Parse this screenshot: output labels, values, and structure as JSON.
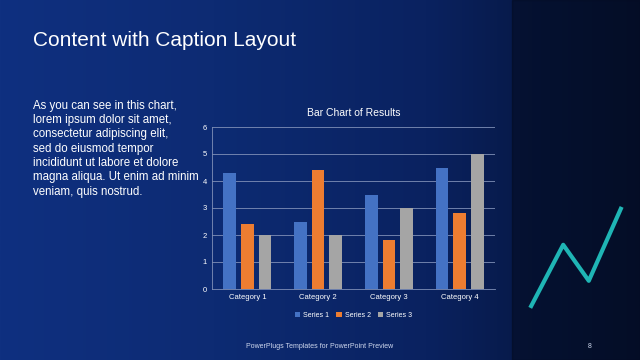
{
  "slide": {
    "title": "Content with Caption Layout",
    "caption": "As you can see in this chart, lorem ipsum dolor sit amet, consectetur adipiscing elit, sed do eiusmod tempor incididunt ut labore et dolore magna aliqua. Ut enim ad minim veniam, quis nostrud.",
    "footer": "PowerPlugs Templates for PowerPoint Preview",
    "page": 8
  },
  "chart_data": {
    "type": "bar",
    "title": "Bar Chart of Results",
    "categories": [
      "Category 1",
      "Category 2",
      "Category 3",
      "Category 4"
    ],
    "series": [
      {
        "name": "Series 1",
        "color": "#4472c4",
        "values": [
          4.3,
          2.5,
          3.5,
          4.5
        ]
      },
      {
        "name": "Series 2",
        "color": "#ed7d31",
        "values": [
          2.4,
          4.4,
          1.8,
          2.8
        ]
      },
      {
        "name": "Series 3",
        "color": "#a5a5a5",
        "values": [
          2,
          2,
          3,
          5
        ]
      }
    ],
    "ylim": [
      0,
      6
    ],
    "yticks": [
      0,
      1,
      2,
      3,
      4,
      5,
      6
    ],
    "grid": true,
    "legend": "bottom"
  }
}
